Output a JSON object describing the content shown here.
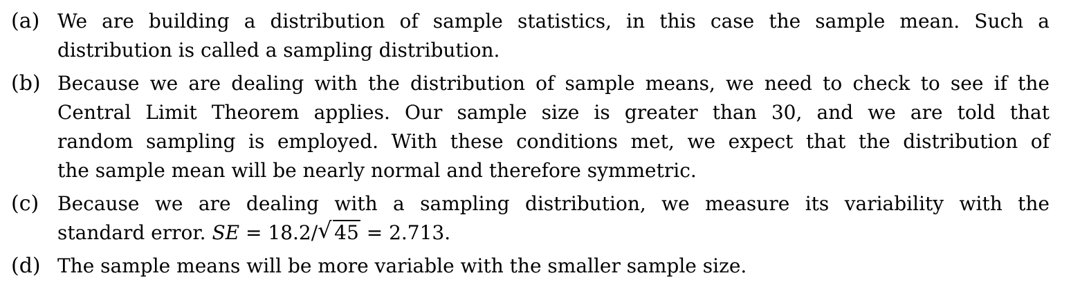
{
  "items": [
    {
      "label": "(a)",
      "lines": [
        "We are building a distribution of sample statistics, in this case the sample mean. Such a",
        "distribution is called a sampling distribution."
      ]
    },
    {
      "label": "(b)",
      "lines": [
        "Because we are dealing with the distribution of sample means, we need to check to see if the",
        "Central Limit Theorem applies. Our sample size is greater than 30, and we are told that",
        "random sampling is employed. With these conditions met, we expect that the distribution of",
        "the sample mean will be nearly normal and therefore symmetric."
      ]
    },
    {
      "label": "(c)",
      "lines": [
        "Because we are dealing with a sampling distribution, we measure its variability with the"
      ],
      "last_line": {
        "text": "standard error.",
        "math_var": "SE",
        "math_eq": "= 18.2/",
        "radical": "√",
        "radicand": "45",
        "math_result": "= 2.713."
      }
    },
    {
      "label": "(d)",
      "lines": [
        "The sample means will be more variable with the smaller sample size."
      ]
    }
  ]
}
